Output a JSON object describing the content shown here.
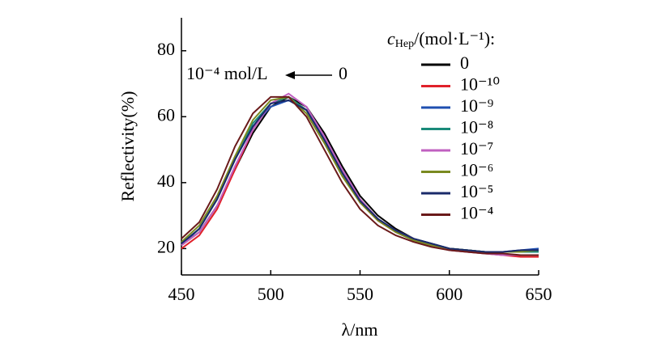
{
  "chart_data": {
    "type": "line",
    "y_label": "Reflectivity(%)",
    "x_label": "λ/nm",
    "xlim": [
      450,
      650
    ],
    "ylim": [
      12,
      90
    ],
    "xticks": [
      450,
      500,
      550,
      600,
      650
    ],
    "yticks": [
      20,
      40,
      60,
      80
    ],
    "legend_title": {
      "symbol": "c",
      "subscript": "Hep",
      "unit": "/(mol·L⁻¹):"
    },
    "annotation": {
      "left": "10⁻⁴ mol/L",
      "right": "0"
    },
    "x": [
      450,
      460,
      470,
      480,
      490,
      500,
      510,
      520,
      530,
      540,
      550,
      560,
      570,
      580,
      590,
      600,
      610,
      620,
      630,
      640,
      650
    ],
    "series": [
      {
        "name": "0",
        "color": "#000000",
        "values": [
          21,
          25,
          33,
          44,
          55,
          63,
          66,
          63,
          55,
          45,
          36,
          30,
          26,
          23,
          21.5,
          20,
          19.5,
          19,
          19,
          19,
          19
        ]
      },
      {
        "name": "10⁻¹⁰",
        "color": "#e0202a",
        "values": [
          20,
          24,
          32,
          44,
          56,
          64,
          66,
          62,
          53,
          43,
          34,
          28.5,
          25,
          22.5,
          21,
          19.5,
          19,
          18.5,
          18,
          17.5,
          17.5
        ]
      },
      {
        "name": "10⁻⁹",
        "color": "#1f4fb0",
        "values": [
          21,
          26,
          35,
          47,
          57,
          63,
          65,
          62,
          54,
          44,
          35,
          29,
          25.5,
          23,
          21.5,
          20,
          19.5,
          19,
          19,
          19.5,
          20
        ]
      },
      {
        "name": "10⁻⁸",
        "color": "#1a8a7a",
        "values": [
          21.5,
          26,
          35,
          47,
          58,
          64,
          66,
          62,
          53,
          43,
          34.5,
          29,
          25,
          22.5,
          21,
          20,
          19.5,
          19,
          19,
          19,
          19
        ]
      },
      {
        "name": "10⁻⁷",
        "color": "#c060c0",
        "values": [
          21,
          25,
          33,
          45,
          56,
          64,
          67,
          63,
          54,
          44,
          35,
          29,
          25.5,
          23,
          21,
          19.5,
          19,
          18.5,
          18,
          18,
          18
        ]
      },
      {
        "name": "10⁻⁶",
        "color": "#7a8a20",
        "values": [
          22,
          27,
          36,
          48,
          59,
          65,
          66,
          61,
          52,
          42,
          34,
          28.5,
          25,
          22.5,
          21,
          20,
          19.5,
          19,
          19,
          19,
          19.5
        ]
      },
      {
        "name": "10⁻⁵",
        "color": "#1a2a6a",
        "values": [
          21.5,
          26,
          35,
          47,
          57,
          64,
          65,
          62,
          53,
          43,
          34.5,
          29,
          25.5,
          23,
          21.5,
          20,
          19.5,
          19,
          19,
          19.5,
          19.5
        ]
      },
      {
        "name": "10⁻⁴",
        "color": "#6a1a1a",
        "values": [
          23,
          28,
          38,
          51,
          61,
          66,
          66,
          60,
          50,
          40,
          32,
          27,
          24,
          22,
          20.5,
          19.5,
          19,
          18.5,
          18.5,
          18,
          18
        ]
      }
    ]
  }
}
